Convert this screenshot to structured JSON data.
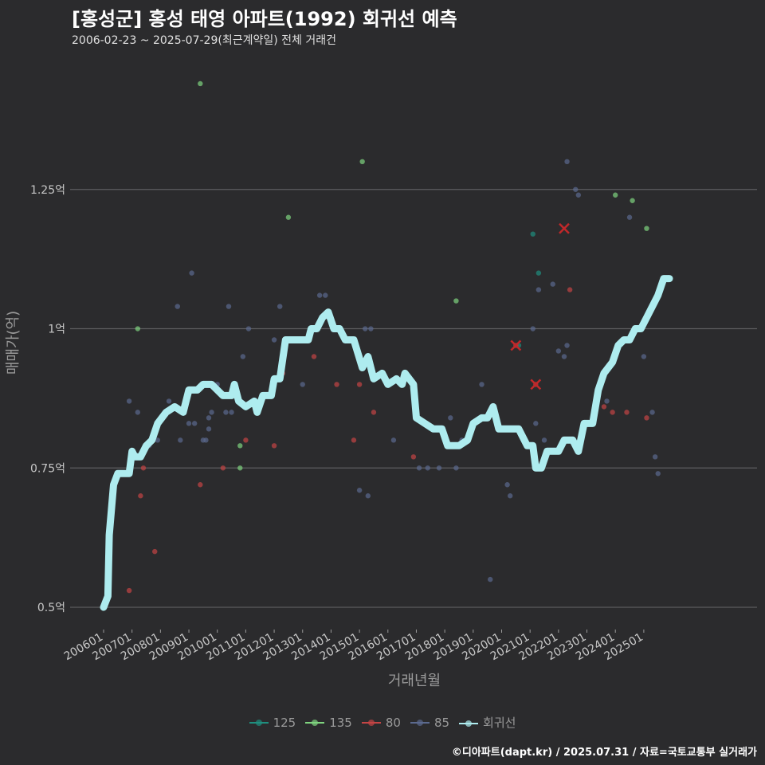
{
  "chart_data": {
    "type": "scatter",
    "title": "[홍성군] 홍성 태영 아파트(1992) 회귀선 예측",
    "subtitle": "2006-02-23 ~ 2025-07-29(최근계약일) 전체 거래건",
    "xlabel": "거래년월",
    "ylabel": "매매가(억)",
    "xlim": [
      2006.0,
      2026.5
    ],
    "ylim": [
      0.46,
      1.49
    ],
    "y_ticks": [
      {
        "value": 0.5,
        "label": "0.5억"
      },
      {
        "value": 0.75,
        "label": "0.75억"
      },
      {
        "value": 1.0,
        "label": "1억"
      },
      {
        "value": 1.25,
        "label": "1.25억"
      }
    ],
    "x_ticks": [
      "200601",
      "200701",
      "200801",
      "200901",
      "201001",
      "201101",
      "201201",
      "201301",
      "201401",
      "201501",
      "201601",
      "201701",
      "201801",
      "201901",
      "202001",
      "202101",
      "202201",
      "202301",
      "202401",
      "202501"
    ],
    "grid": true,
    "legend_position": "bottom",
    "series": [
      {
        "name": "125",
        "color": "#1f8f7f",
        "points": [
          [
            2021.1,
            1.17
          ],
          [
            2020.6,
            0.97
          ],
          [
            2021.3,
            1.1
          ]
        ]
      },
      {
        "name": "135",
        "color": "#7fd47f",
        "points": [
          [
            2009.4,
            1.44
          ],
          [
            2007.2,
            1.0
          ],
          [
            2012.5,
            1.2
          ],
          [
            2015.1,
            1.3
          ],
          [
            2010.8,
            0.79
          ],
          [
            2010.8,
            0.75
          ],
          [
            2018.4,
            1.05
          ],
          [
            2024.0,
            1.24
          ],
          [
            2024.6,
            1.23
          ],
          [
            2025.1,
            1.18
          ]
        ]
      },
      {
        "name": "80",
        "color": "#c44545",
        "points": [
          [
            2006.9,
            0.53
          ],
          [
            2007.3,
            0.7
          ],
          [
            2007.4,
            0.75
          ],
          [
            2007.8,
            0.6
          ],
          [
            2009.4,
            0.72
          ],
          [
            2010.2,
            0.75
          ],
          [
            2011.0,
            0.8
          ],
          [
            2012.0,
            0.79
          ],
          [
            2012.3,
            0.92
          ],
          [
            2013.4,
            0.95
          ],
          [
            2014.2,
            0.9
          ],
          [
            2014.8,
            0.8
          ],
          [
            2015.0,
            0.9
          ],
          [
            2015.5,
            0.85
          ],
          [
            2016.9,
            0.77
          ],
          [
            2020.5,
            0.97
          ],
          [
            2021.2,
            0.9
          ],
          [
            2021.4,
            0.75
          ],
          [
            2022.4,
            1.07
          ],
          [
            2023.3,
            0.86
          ],
          [
            2023.6,
            0.86
          ],
          [
            2023.9,
            0.85
          ],
          [
            2024.4,
            0.85
          ],
          [
            2025.1,
            0.84
          ]
        ]
      },
      {
        "name": "85",
        "color": "#5b6a8f",
        "points": [
          [
            2006.9,
            0.87
          ],
          [
            2007.2,
            0.85
          ],
          [
            2007.6,
            0.79
          ],
          [
            2007.9,
            0.8
          ],
          [
            2008.3,
            0.87
          ],
          [
            2008.6,
            1.04
          ],
          [
            2008.7,
            0.8
          ],
          [
            2009.0,
            0.83
          ],
          [
            2009.1,
            1.1
          ],
          [
            2009.2,
            0.83
          ],
          [
            2009.5,
            0.8
          ],
          [
            2009.6,
            0.8
          ],
          [
            2009.7,
            0.82
          ],
          [
            2009.7,
            0.84
          ],
          [
            2009.8,
            0.85
          ],
          [
            2010.0,
            0.9
          ],
          [
            2010.3,
            0.85
          ],
          [
            2010.4,
            1.04
          ],
          [
            2010.5,
            0.85
          ],
          [
            2010.9,
            0.95
          ],
          [
            2011.1,
            1.0
          ],
          [
            2012.0,
            0.98
          ],
          [
            2012.2,
            1.04
          ],
          [
            2013.0,
            0.9
          ],
          [
            2013.6,
            1.06
          ],
          [
            2013.8,
            1.06
          ],
          [
            2015.0,
            0.71
          ],
          [
            2015.2,
            1.0
          ],
          [
            2015.3,
            0.7
          ],
          [
            2015.4,
            1.0
          ],
          [
            2016.2,
            0.8
          ],
          [
            2017.1,
            0.75
          ],
          [
            2017.4,
            0.75
          ],
          [
            2017.8,
            0.75
          ],
          [
            2018.2,
            0.84
          ],
          [
            2018.4,
            0.75
          ],
          [
            2018.6,
            0.8
          ],
          [
            2018.8,
            0.8
          ],
          [
            2019.3,
            0.9
          ],
          [
            2019.6,
            0.55
          ],
          [
            2020.2,
            0.72
          ],
          [
            2020.3,
            0.7
          ],
          [
            2020.7,
            0.81
          ],
          [
            2021.1,
            1.0
          ],
          [
            2021.2,
            0.83
          ],
          [
            2021.3,
            1.07
          ],
          [
            2021.5,
            0.8
          ],
          [
            2021.8,
            1.08
          ],
          [
            2022.0,
            0.96
          ],
          [
            2022.2,
            0.95
          ],
          [
            2022.3,
            0.97
          ],
          [
            2022.3,
            1.3
          ],
          [
            2022.6,
            1.25
          ],
          [
            2022.7,
            1.24
          ],
          [
            2023.7,
            0.87
          ],
          [
            2024.5,
            1.2
          ],
          [
            2025.0,
            0.95
          ],
          [
            2025.3,
            0.85
          ],
          [
            2025.4,
            0.77
          ],
          [
            2025.5,
            0.74
          ]
        ]
      }
    ],
    "highlights": [
      [
        2020.5,
        0.97
      ],
      [
        2021.2,
        0.9
      ],
      [
        2022.2,
        1.18
      ]
    ],
    "regression_line": {
      "name": "회귀선",
      "color": "#aeecef",
      "points": [
        [
          2006.0,
          0.5
        ],
        [
          2006.15,
          0.52
        ],
        [
          2006.2,
          0.63
        ],
        [
          2006.35,
          0.72
        ],
        [
          2006.5,
          0.74
        ],
        [
          2006.9,
          0.74
        ],
        [
          2007.0,
          0.78
        ],
        [
          2007.1,
          0.77
        ],
        [
          2007.3,
          0.77
        ],
        [
          2007.5,
          0.79
        ],
        [
          2007.7,
          0.8
        ],
        [
          2007.9,
          0.83
        ],
        [
          2008.2,
          0.85
        ],
        [
          2008.5,
          0.86
        ],
        [
          2008.8,
          0.85
        ],
        [
          2009.0,
          0.89
        ],
        [
          2009.3,
          0.89
        ],
        [
          2009.5,
          0.9
        ],
        [
          2009.8,
          0.9
        ],
        [
          2010.0,
          0.89
        ],
        [
          2010.2,
          0.88
        ],
        [
          2010.5,
          0.88
        ],
        [
          2010.6,
          0.9
        ],
        [
          2010.75,
          0.87
        ],
        [
          2011.0,
          0.86
        ],
        [
          2011.3,
          0.87
        ],
        [
          2011.4,
          0.85
        ],
        [
          2011.6,
          0.88
        ],
        [
          2011.9,
          0.88
        ],
        [
          2012.0,
          0.91
        ],
        [
          2012.2,
          0.91
        ],
        [
          2012.4,
          0.98
        ],
        [
          2012.7,
          0.98
        ],
        [
          2013.0,
          0.98
        ],
        [
          2013.2,
          0.98
        ],
        [
          2013.3,
          1.0
        ],
        [
          2013.5,
          1.0
        ],
        [
          2013.7,
          1.02
        ],
        [
          2013.9,
          1.03
        ],
        [
          2014.1,
          1.0
        ],
        [
          2014.3,
          1.0
        ],
        [
          2014.5,
          0.98
        ],
        [
          2014.8,
          0.98
        ],
        [
          2015.1,
          0.93
        ],
        [
          2015.3,
          0.95
        ],
        [
          2015.5,
          0.91
        ],
        [
          2015.8,
          0.92
        ],
        [
          2016.0,
          0.9
        ],
        [
          2016.3,
          0.91
        ],
        [
          2016.5,
          0.9
        ],
        [
          2016.6,
          0.92
        ],
        [
          2016.9,
          0.9
        ],
        [
          2017.0,
          0.84
        ],
        [
          2017.3,
          0.83
        ],
        [
          2017.6,
          0.82
        ],
        [
          2017.9,
          0.82
        ],
        [
          2018.1,
          0.79
        ],
        [
          2018.5,
          0.79
        ],
        [
          2018.8,
          0.8
        ],
        [
          2019.0,
          0.83
        ],
        [
          2019.3,
          0.84
        ],
        [
          2019.5,
          0.84
        ],
        [
          2019.7,
          0.86
        ],
        [
          2019.9,
          0.82
        ],
        [
          2020.2,
          0.82
        ],
        [
          2020.6,
          0.82
        ],
        [
          2020.9,
          0.79
        ],
        [
          2021.1,
          0.79
        ],
        [
          2021.2,
          0.75
        ],
        [
          2021.4,
          0.75
        ],
        [
          2021.6,
          0.78
        ],
        [
          2022.0,
          0.78
        ],
        [
          2022.2,
          0.8
        ],
        [
          2022.5,
          0.8
        ],
        [
          2022.7,
          0.78
        ],
        [
          2022.9,
          0.83
        ],
        [
          2023.2,
          0.83
        ],
        [
          2023.4,
          0.89
        ],
        [
          2023.6,
          0.92
        ],
        [
          2023.9,
          0.94
        ],
        [
          2024.1,
          0.97
        ],
        [
          2024.3,
          0.98
        ],
        [
          2024.5,
          0.98
        ],
        [
          2024.7,
          1.0
        ],
        [
          2024.9,
          1.0
        ],
        [
          2025.1,
          1.02
        ],
        [
          2025.3,
          1.04
        ],
        [
          2025.5,
          1.06
        ],
        [
          2025.7,
          1.09
        ],
        [
          2025.9,
          1.09
        ]
      ]
    }
  },
  "legend": [
    {
      "label": "125",
      "color": "#1f8f7f"
    },
    {
      "label": "135",
      "color": "#7fd47f"
    },
    {
      "label": "80",
      "color": "#c44545"
    },
    {
      "label": "85",
      "color": "#5b6a8f"
    },
    {
      "label": "회귀선",
      "color": "#aeecef"
    }
  ],
  "credit": "©디아파트(dapt.kr) / 2025.07.31 / 자료=국토교통부 실거래가"
}
